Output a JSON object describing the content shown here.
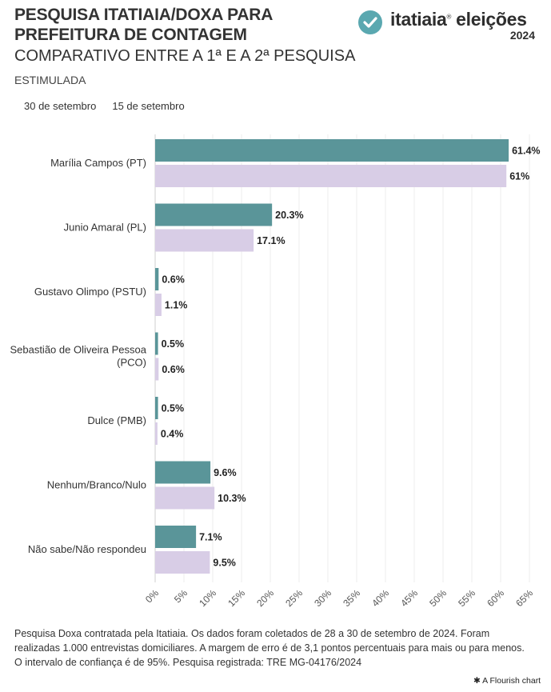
{
  "header": {
    "title": "PESQUISA ITATIAIA/DOXA PARA PREFEITURA DE CONTAGEM",
    "subtitle": "COMPARATIVO ENTRE A 1ª E A 2ª PESQUISA",
    "mode": "ESTIMULADA"
  },
  "logo": {
    "wordmark": "itatiaia",
    "wordmark_suffix": "eleições",
    "year": "2024",
    "accent": "#5aa8b0"
  },
  "legend": [
    {
      "label": "30 de setembro",
      "color": "#5a9599"
    },
    {
      "label": "15 de setembro",
      "color": "#d8cde6"
    }
  ],
  "chart_data": {
    "type": "bar",
    "orientation": "horizontal",
    "categories": [
      "Marília Campos (PT)",
      "Junio Amaral (PL)",
      "Gustavo Olimpo (PSTU)",
      "Sebastião de Oliveira Pessoa (PCO)",
      "Dulce (PMB)",
      "Nenhum/Branco/Nulo",
      "Não sabe/Não respondeu"
    ],
    "series": [
      {
        "name": "30 de setembro",
        "values": [
          61.4,
          20.3,
          0.6,
          0.5,
          0.5,
          9.6,
          7.1
        ],
        "labels": [
          "61.4%",
          "20.3%",
          "0.6%",
          "0.5%",
          "0.5%",
          "9.6%",
          "7.1%"
        ],
        "color": "#5a9599"
      },
      {
        "name": "15 de setembro",
        "values": [
          61,
          17.1,
          1.1,
          0.6,
          0.4,
          10.3,
          9.5
        ],
        "labels": [
          "61%",
          "17.1%",
          "1.1%",
          "0.6%",
          "0.4%",
          "10.3%",
          "9.5%"
        ],
        "color": "#d8cde6"
      }
    ],
    "xlim": [
      0,
      65
    ],
    "xticks": [
      "0%",
      "5%",
      "10%",
      "15%",
      "20%",
      "25%",
      "30%",
      "35%",
      "40%",
      "45%",
      "50%",
      "55%",
      "60%",
      "65%"
    ],
    "grid": true
  },
  "footnote": "Pesquisa Doxa contratada pela Itatiaia. Os dados foram coletados de 28 a 30 de setembro de 2024. Foram realizadas 1.000 entrevistas domiciliares. A margem de erro é de 3,1 pontos percentuais para mais ou para menos. O intervalo de confiança é de 95%. Pesquisa registrada: TRE MG-04176/2024",
  "credit": "A Flourish chart"
}
